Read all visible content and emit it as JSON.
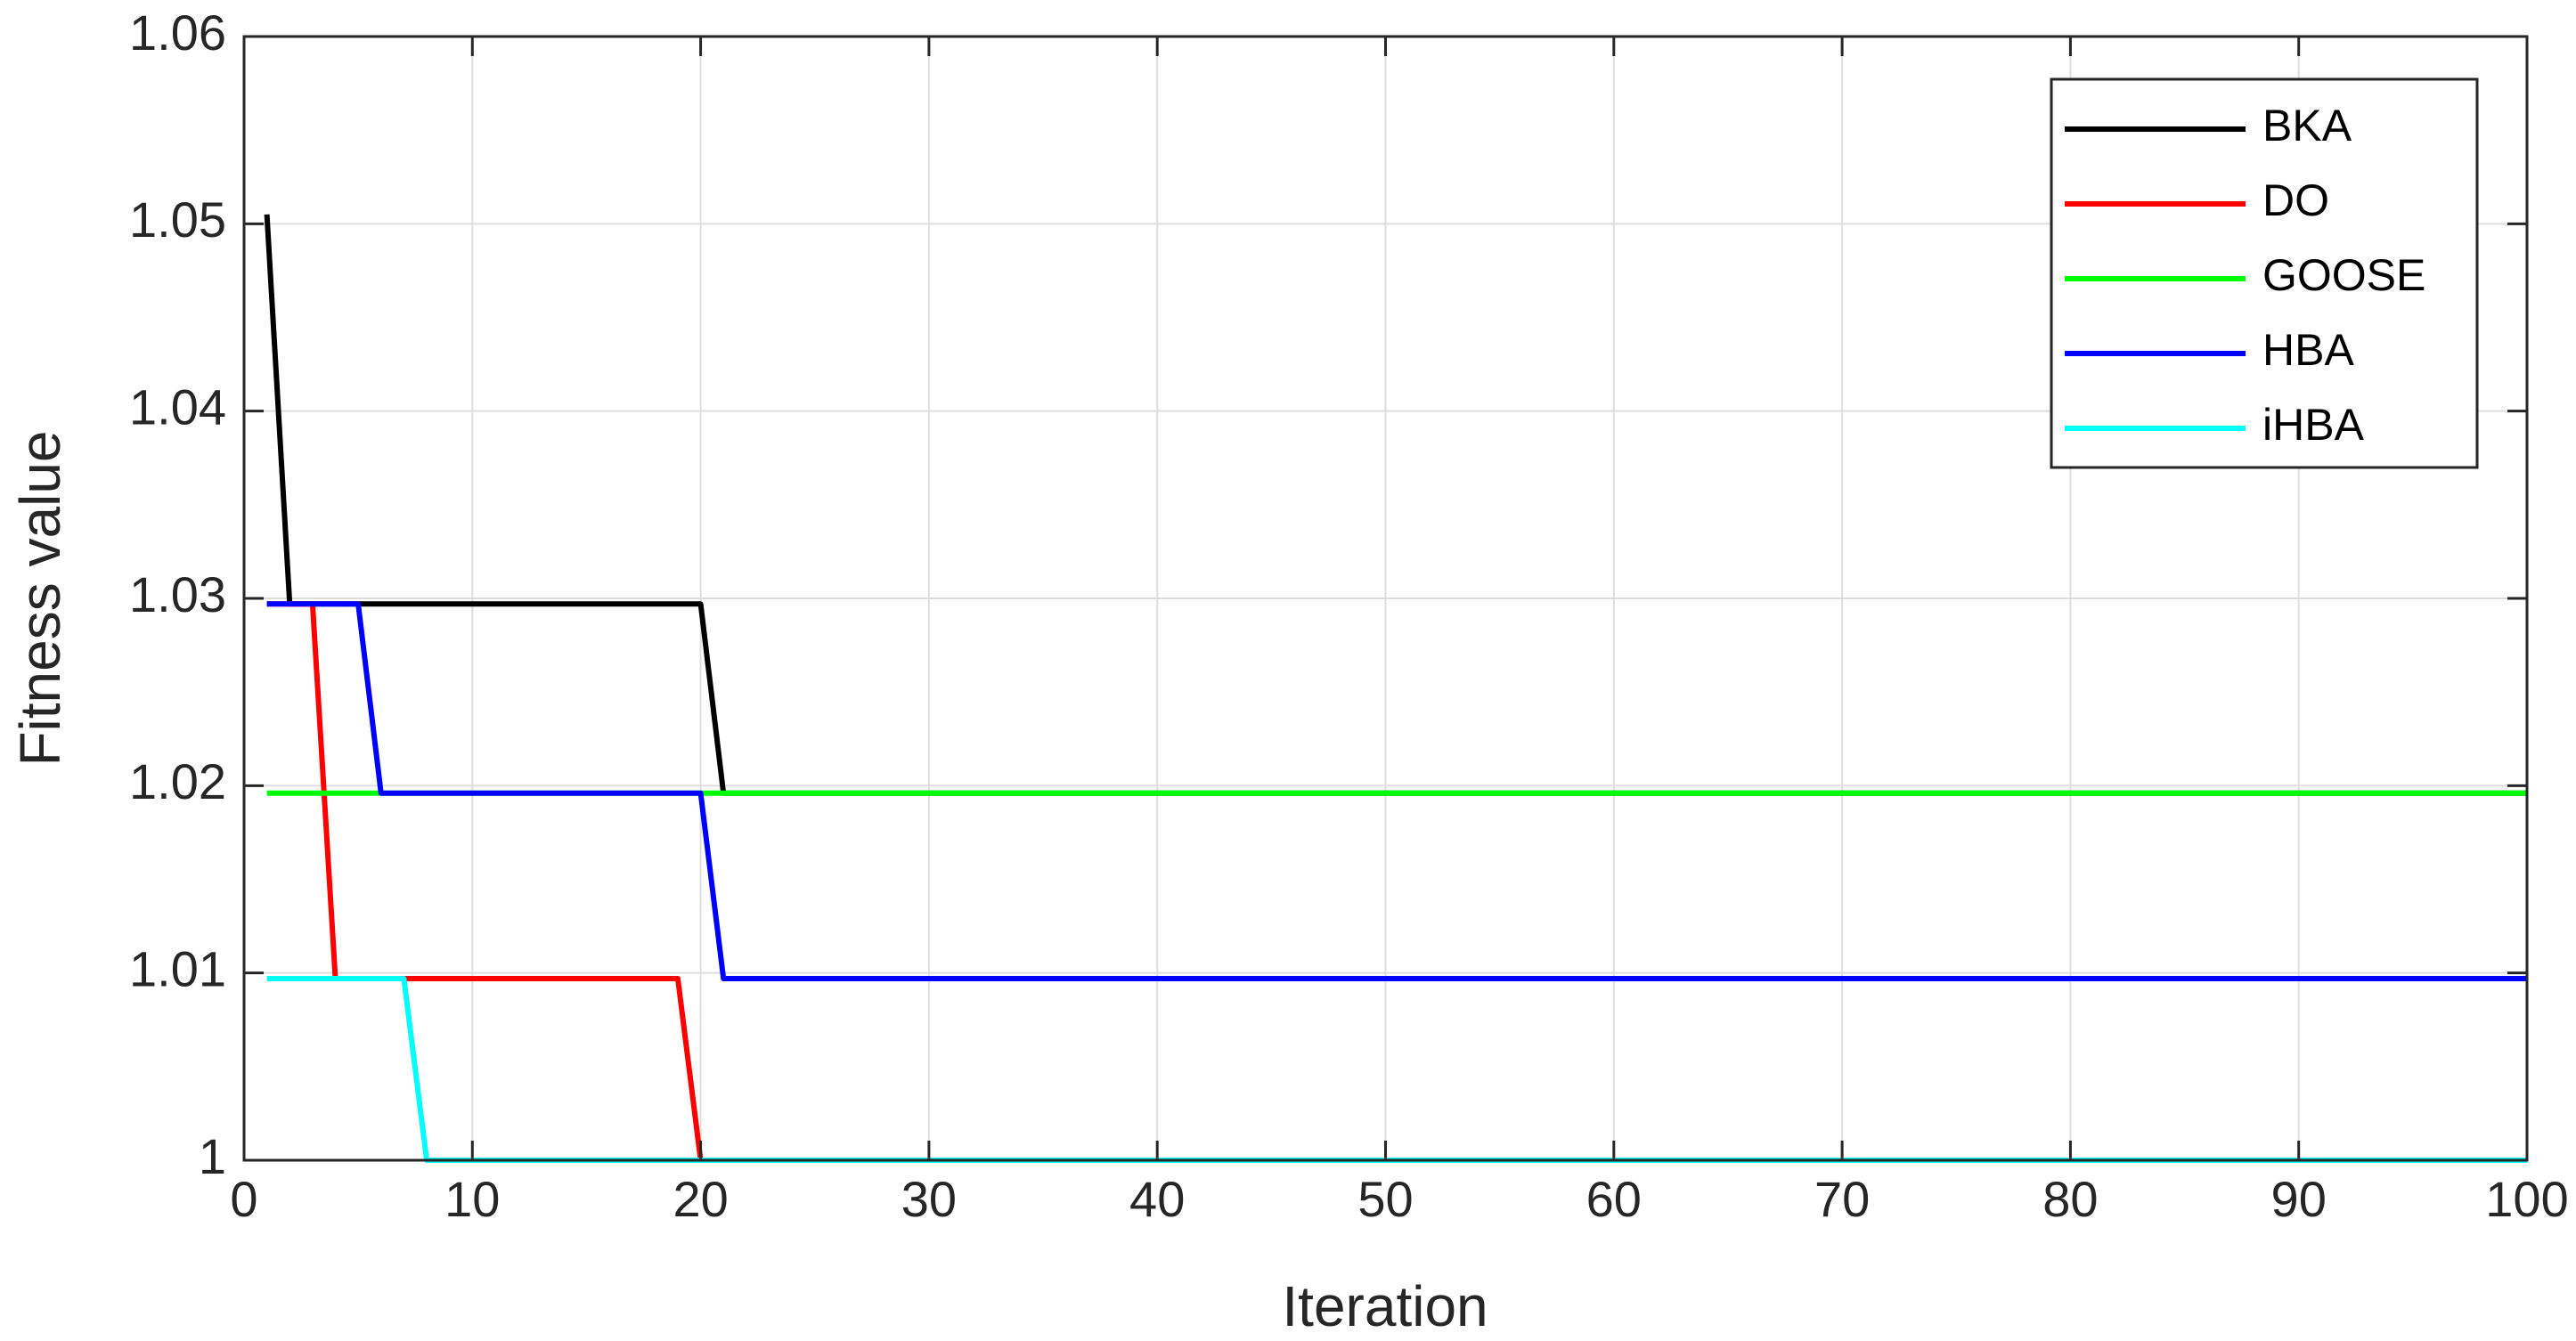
{
  "chart_data": {
    "type": "line",
    "xlabel": "Iteration",
    "ylabel": "Fitness value",
    "xlim": [
      0,
      100
    ],
    "ylim": [
      1,
      1.06
    ],
    "xticks": [
      0,
      10,
      20,
      30,
      40,
      50,
      60,
      70,
      80,
      90,
      100
    ],
    "yticks": [
      1,
      1.01,
      1.02,
      1.03,
      1.04,
      1.05,
      1.06
    ],
    "grid": true,
    "legend": "northeast",
    "series": [
      {
        "name": "BKA",
        "color": "#000000",
        "x": [
          1,
          2,
          20,
          21,
          100
        ],
        "values": [
          1.0505,
          1.0297,
          1.0297,
          1.0196,
          1.0196
        ]
      },
      {
        "name": "DO",
        "color": "#ff0000",
        "x": [
          1,
          3,
          4,
          19,
          20,
          100
        ],
        "values": [
          1.0297,
          1.0297,
          1.0097,
          1.0097,
          1.0,
          1.0
        ]
      },
      {
        "name": "GOOSE",
        "color": "#00ff00",
        "x": [
          1,
          100
        ],
        "values": [
          1.0196,
          1.0196
        ]
      },
      {
        "name": "HBA",
        "color": "#0000ff",
        "x": [
          1,
          5,
          6,
          20,
          21,
          100
        ],
        "values": [
          1.0297,
          1.0297,
          1.0196,
          1.0196,
          1.0097,
          1.0097
        ]
      },
      {
        "name": "iHBA",
        "color": "#00ffff",
        "x": [
          1,
          7,
          8,
          100
        ],
        "values": [
          1.0097,
          1.0097,
          1.0,
          1.0
        ]
      }
    ]
  }
}
